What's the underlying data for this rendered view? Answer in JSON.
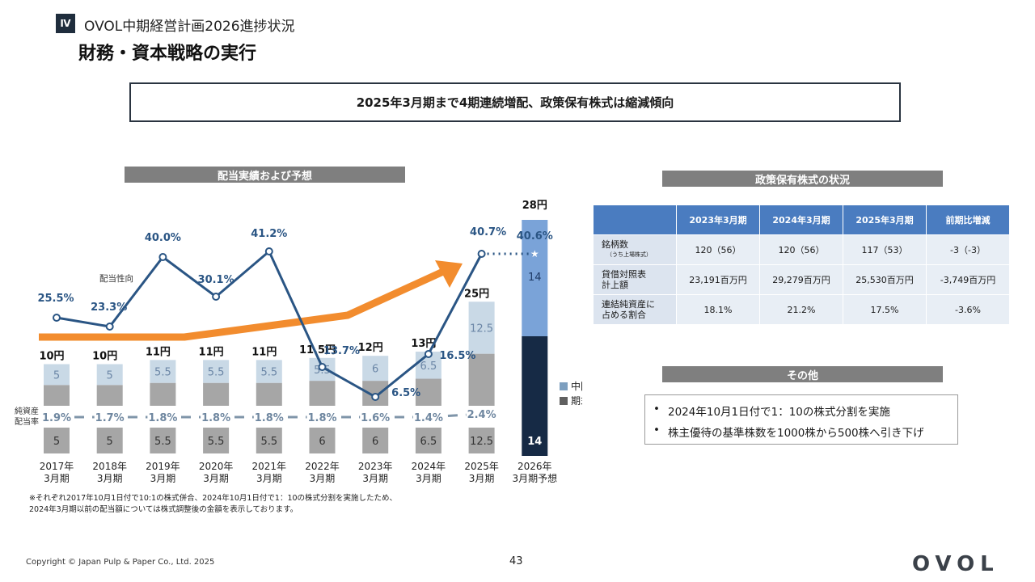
{
  "header": {
    "section_badge": "Ⅳ",
    "section_title": "OVOL中期経営計画2026進捗状況",
    "page_title": "財務・資本戦略の実行",
    "headline": "2025年3月期まで4期連続増配、政策保有株式は縮減傾向"
  },
  "dividend_section": {
    "title": "配当実績および予想"
  },
  "chart_data": {
    "type": "bar",
    "title": "配当実績および予想",
    "categories": [
      "2017年\n3月期",
      "2018年\n3月期",
      "2019年\n3月期",
      "2020年\n3月期",
      "2021年\n3月期",
      "2022年\n3月期",
      "2023年\n3月期",
      "2024年\n3月期",
      "2025年\n3月期",
      "2026年\n3月期予想"
    ],
    "category_lines": [
      [
        "2017年",
        "3月期"
      ],
      [
        "2018年",
        "3月期"
      ],
      [
        "2019年",
        "3月期"
      ],
      [
        "2020年",
        "3月期"
      ],
      [
        "2021年",
        "3月期"
      ],
      [
        "2022年",
        "3月期"
      ],
      [
        "2023年",
        "3月期"
      ],
      [
        "2024年",
        "3月期"
      ],
      [
        "2025年",
        "3月期"
      ],
      [
        "2026年",
        "3月期予想"
      ]
    ],
    "series": [
      {
        "name": "中間",
        "values": [
          5,
          5,
          5.5,
          5.5,
          5.5,
          5.5,
          6,
          6.5,
          12.5,
          14
        ],
        "labels": [
          "5",
          "5",
          "5.5",
          "5.5",
          "5.5",
          "5.5",
          "6",
          "6.5",
          "12.5",
          "14"
        ]
      },
      {
        "name": "期末",
        "values": [
          5,
          5,
          5.5,
          5.5,
          5.5,
          6,
          6,
          6.5,
          12.5,
          14
        ],
        "labels": [
          "5",
          "5",
          "5.5",
          "5.5",
          "5.5",
          "6",
          "6",
          "6.5",
          "12.5",
          "14"
        ]
      }
    ],
    "totals": [
      "10円",
      "10円",
      "11円",
      "11円",
      "11円",
      "11.5円",
      "12円",
      "13円",
      "25円",
      "28円"
    ],
    "payout_ratio": {
      "name": "配当性向",
      "values": [
        25.5,
        23.3,
        40.0,
        30.1,
        41.2,
        13.7,
        6.5,
        16.5,
        40.7,
        40.6
      ],
      "labels": [
        "25.5%",
        "23.3%",
        "40.0%",
        "30.1%",
        "41.2%",
        "13.7%",
        "6.5%",
        "16.5%",
        "40.7%",
        "40.6%"
      ]
    },
    "doe": {
      "name": "純資産\n配当率",
      "name_lines": [
        "純資産",
        "配当率"
      ],
      "values": [
        1.9,
        1.7,
        1.8,
        1.8,
        1.8,
        1.8,
        1.6,
        1.4,
        2.4
      ],
      "labels": [
        "1.9%",
        "1.7%",
        "1.8%",
        "1.8%",
        "1.8%",
        "1.8%",
        "1.6%",
        "1.4%",
        "2.4%"
      ]
    },
    "legend_position": "right",
    "colors": {
      "interim_past": "#c9d9e6",
      "year_end_past": "#a6a6a6",
      "interim_forecast": "#7aa3d8",
      "year_end_forecast": "#162a45",
      "payout_line": "#2a5584",
      "doe_line": "#7f95a9",
      "arrow": "#f28c2e"
    }
  },
  "holdings_section": {
    "title": "政策保有株式の状況",
    "columns": [
      "",
      "2023年3月期",
      "2024年3月期",
      "2025年3月期",
      "前期比増減"
    ],
    "rows": [
      {
        "label": "銘柄数",
        "sublabel": "（うち上場株式）",
        "cells": [
          "120（56）",
          "120（56）",
          "117（53）",
          "-3（-3）"
        ]
      },
      {
        "label": "貸借対照表\n計上額",
        "label_lines": [
          "貸借対照表",
          "計上額"
        ],
        "cells": [
          "23,191百万円",
          "29,279百万円",
          "25,530百万円",
          "-3,749百万円"
        ]
      },
      {
        "label": "連結純資産に\n占める割合",
        "label_lines": [
          "連結純資産に",
          "占める割合"
        ],
        "cells": [
          "18.1%",
          "21.2%",
          "17.5%",
          "-3.6%"
        ]
      }
    ]
  },
  "other_section": {
    "title": "その他",
    "items": [
      "2024年10月1日付で1：10の株式分割を実施",
      "株主優待の基準株数を1000株から500株へ引き下げ"
    ]
  },
  "footnote": {
    "line1": "※それぞれ2017年10月1日付で10:1の株式併合、2024年10月1日付で1：10の株式分割を実施したため、",
    "line2": "2024年3月期以前の配当額については株式調整後の金額を表示しております。"
  },
  "footer": {
    "copyright": "Copyright © Japan Pulp & Paper Co., Ltd. 2025",
    "page_number": "43",
    "logo": "OVOL"
  }
}
